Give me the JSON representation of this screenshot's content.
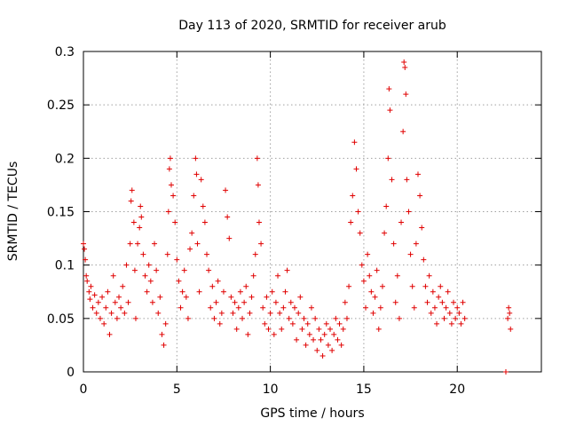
{
  "chart_data": {
    "type": "scatter",
    "title": "Day 113 of 2020, SRMTID for receiver arub",
    "xlabel": "GPS time / hours",
    "ylabel": "SRMTID / TECUs",
    "xlim": [
      0,
      24.5
    ],
    "ylim": [
      0,
      0.3
    ],
    "x_ticks": [
      0,
      5,
      10,
      15,
      20
    ],
    "y_ticks": [
      0,
      0.05,
      0.1,
      0.15,
      0.2,
      0.25,
      0.3
    ],
    "x_tick_labels": [
      "0",
      "5",
      "10",
      "15",
      "20"
    ],
    "y_tick_labels": [
      "0",
      "0.05",
      "0.1",
      "0.15",
      "0.2",
      "0.25",
      "0.3"
    ],
    "grid": true,
    "marker": "plus",
    "color": "#e00000",
    "series": [
      {
        "name": "SRMTID",
        "points": [
          [
            0.0,
            0.12
          ],
          [
            0.05,
            0.115
          ],
          [
            0.1,
            0.105
          ],
          [
            0.15,
            0.09
          ],
          [
            0.2,
            0.085
          ],
          [
            0.3,
            0.075
          ],
          [
            0.35,
            0.068
          ],
          [
            0.4,
            0.08
          ],
          [
            0.5,
            0.06
          ],
          [
            0.6,
            0.072
          ],
          [
            0.7,
            0.055
          ],
          [
            0.8,
            0.065
          ],
          [
            0.9,
            0.05
          ],
          [
            1.0,
            0.07
          ],
          [
            1.1,
            0.045
          ],
          [
            1.2,
            0.06
          ],
          [
            1.3,
            0.075
          ],
          [
            1.4,
            0.035
          ],
          [
            1.5,
            0.055
          ],
          [
            1.6,
            0.09
          ],
          [
            1.7,
            0.065
          ],
          [
            1.8,
            0.05
          ],
          [
            1.9,
            0.07
          ],
          [
            2.0,
            0.06
          ],
          [
            2.1,
            0.08
          ],
          [
            2.2,
            0.055
          ],
          [
            2.3,
            0.1
          ],
          [
            2.4,
            0.065
          ],
          [
            2.5,
            0.12
          ],
          [
            2.55,
            0.16
          ],
          [
            2.6,
            0.17
          ],
          [
            2.7,
            0.14
          ],
          [
            2.75,
            0.095
          ],
          [
            2.8,
            0.05
          ],
          [
            2.9,
            0.12
          ],
          [
            3.0,
            0.135
          ],
          [
            3.05,
            0.155
          ],
          [
            3.1,
            0.145
          ],
          [
            3.2,
            0.11
          ],
          [
            3.3,
            0.09
          ],
          [
            3.4,
            0.075
          ],
          [
            3.5,
            0.1
          ],
          [
            3.6,
            0.085
          ],
          [
            3.7,
            0.065
          ],
          [
            3.8,
            0.12
          ],
          [
            3.9,
            0.095
          ],
          [
            4.0,
            0.055
          ],
          [
            4.1,
            0.07
          ],
          [
            4.2,
            0.035
          ],
          [
            4.3,
            0.025
          ],
          [
            4.4,
            0.045
          ],
          [
            4.5,
            0.11
          ],
          [
            4.55,
            0.15
          ],
          [
            4.6,
            0.19
          ],
          [
            4.65,
            0.2
          ],
          [
            4.7,
            0.175
          ],
          [
            4.8,
            0.165
          ],
          [
            4.9,
            0.14
          ],
          [
            5.0,
            0.105
          ],
          [
            5.1,
            0.085
          ],
          [
            5.2,
            0.06
          ],
          [
            5.3,
            0.075
          ],
          [
            5.4,
            0.095
          ],
          [
            5.5,
            0.07
          ],
          [
            5.6,
            0.05
          ],
          [
            5.7,
            0.115
          ],
          [
            5.8,
            0.13
          ],
          [
            5.9,
            0.165
          ],
          [
            6.0,
            0.2
          ],
          [
            6.05,
            0.185
          ],
          [
            6.1,
            0.12
          ],
          [
            6.2,
            0.075
          ],
          [
            6.3,
            0.18
          ],
          [
            6.4,
            0.155
          ],
          [
            6.5,
            0.14
          ],
          [
            6.6,
            0.11
          ],
          [
            6.7,
            0.095
          ],
          [
            6.8,
            0.06
          ],
          [
            6.9,
            0.08
          ],
          [
            7.0,
            0.05
          ],
          [
            7.1,
            0.065
          ],
          [
            7.2,
            0.085
          ],
          [
            7.3,
            0.045
          ],
          [
            7.4,
            0.055
          ],
          [
            7.5,
            0.075
          ],
          [
            7.6,
            0.17
          ],
          [
            7.7,
            0.145
          ],
          [
            7.8,
            0.125
          ],
          [
            7.9,
            0.07
          ],
          [
            8.0,
            0.055
          ],
          [
            8.1,
            0.065
          ],
          [
            8.2,
            0.04
          ],
          [
            8.3,
            0.06
          ],
          [
            8.4,
            0.075
          ],
          [
            8.5,
            0.05
          ],
          [
            8.6,
            0.065
          ],
          [
            8.7,
            0.08
          ],
          [
            8.8,
            0.035
          ],
          [
            8.9,
            0.055
          ],
          [
            9.0,
            0.07
          ],
          [
            9.1,
            0.09
          ],
          [
            9.2,
            0.11
          ],
          [
            9.3,
            0.2
          ],
          [
            9.35,
            0.175
          ],
          [
            9.4,
            0.14
          ],
          [
            9.5,
            0.12
          ],
          [
            9.6,
            0.06
          ],
          [
            9.7,
            0.045
          ],
          [
            9.8,
            0.07
          ],
          [
            9.9,
            0.04
          ],
          [
            10.0,
            0.055
          ],
          [
            10.1,
            0.075
          ],
          [
            10.2,
            0.035
          ],
          [
            10.3,
            0.065
          ],
          [
            10.4,
            0.09
          ],
          [
            10.5,
            0.055
          ],
          [
            10.6,
            0.04
          ],
          [
            10.7,
            0.06
          ],
          [
            10.8,
            0.075
          ],
          [
            10.9,
            0.095
          ],
          [
            11.0,
            0.05
          ],
          [
            11.1,
            0.065
          ],
          [
            11.2,
            0.045
          ],
          [
            11.3,
            0.06
          ],
          [
            11.4,
            0.03
          ],
          [
            11.5,
            0.055
          ],
          [
            11.6,
            0.07
          ],
          [
            11.7,
            0.04
          ],
          [
            11.8,
            0.05
          ],
          [
            11.9,
            0.025
          ],
          [
            12.0,
            0.045
          ],
          [
            12.1,
            0.035
          ],
          [
            12.2,
            0.06
          ],
          [
            12.3,
            0.03
          ],
          [
            12.4,
            0.05
          ],
          [
            12.5,
            0.02
          ],
          [
            12.6,
            0.04
          ],
          [
            12.7,
            0.03
          ],
          [
            12.8,
            0.015
          ],
          [
            12.9,
            0.035
          ],
          [
            13.0,
            0.045
          ],
          [
            13.1,
            0.025
          ],
          [
            13.2,
            0.04
          ],
          [
            13.3,
            0.02
          ],
          [
            13.4,
            0.035
          ],
          [
            13.5,
            0.05
          ],
          [
            13.6,
            0.03
          ],
          [
            13.7,
            0.045
          ],
          [
            13.8,
            0.025
          ],
          [
            13.9,
            0.04
          ],
          [
            14.0,
            0.065
          ],
          [
            14.1,
            0.05
          ],
          [
            14.2,
            0.08
          ],
          [
            14.3,
            0.14
          ],
          [
            14.4,
            0.165
          ],
          [
            14.5,
            0.215
          ],
          [
            14.6,
            0.19
          ],
          [
            14.7,
            0.15
          ],
          [
            14.8,
            0.13
          ],
          [
            14.9,
            0.1
          ],
          [
            15.0,
            0.085
          ],
          [
            15.1,
            0.06
          ],
          [
            15.2,
            0.11
          ],
          [
            15.3,
            0.09
          ],
          [
            15.4,
            0.075
          ],
          [
            15.5,
            0.055
          ],
          [
            15.6,
            0.07
          ],
          [
            15.7,
            0.095
          ],
          [
            15.8,
            0.04
          ],
          [
            15.9,
            0.06
          ],
          [
            16.0,
            0.08
          ],
          [
            16.1,
            0.13
          ],
          [
            16.2,
            0.155
          ],
          [
            16.3,
            0.2
          ],
          [
            16.35,
            0.265
          ],
          [
            16.4,
            0.245
          ],
          [
            16.5,
            0.18
          ],
          [
            16.6,
            0.12
          ],
          [
            16.7,
            0.065
          ],
          [
            16.8,
            0.09
          ],
          [
            16.9,
            0.05
          ],
          [
            17.0,
            0.14
          ],
          [
            17.1,
            0.225
          ],
          [
            17.15,
            0.29
          ],
          [
            17.2,
            0.285
          ],
          [
            17.25,
            0.26
          ],
          [
            17.3,
            0.18
          ],
          [
            17.4,
            0.15
          ],
          [
            17.5,
            0.11
          ],
          [
            17.6,
            0.08
          ],
          [
            17.7,
            0.06
          ],
          [
            17.8,
            0.12
          ],
          [
            17.9,
            0.185
          ],
          [
            18.0,
            0.165
          ],
          [
            18.1,
            0.135
          ],
          [
            18.2,
            0.105
          ],
          [
            18.3,
            0.08
          ],
          [
            18.4,
            0.065
          ],
          [
            18.5,
            0.09
          ],
          [
            18.6,
            0.055
          ],
          [
            18.7,
            0.075
          ],
          [
            18.8,
            0.06
          ],
          [
            18.9,
            0.045
          ],
          [
            19.0,
            0.07
          ],
          [
            19.1,
            0.08
          ],
          [
            19.2,
            0.065
          ],
          [
            19.3,
            0.05
          ],
          [
            19.4,
            0.06
          ],
          [
            19.5,
            0.075
          ],
          [
            19.6,
            0.055
          ],
          [
            19.7,
            0.045
          ],
          [
            19.8,
            0.065
          ],
          [
            19.9,
            0.05
          ],
          [
            20.0,
            0.06
          ],
          [
            20.1,
            0.055
          ],
          [
            20.2,
            0.045
          ],
          [
            20.3,
            0.065
          ],
          [
            20.4,
            0.05
          ],
          [
            22.6,
            0.0
          ],
          [
            22.7,
            0.05
          ],
          [
            22.75,
            0.06
          ],
          [
            22.8,
            0.055
          ],
          [
            22.85,
            0.04
          ]
        ]
      }
    ]
  }
}
